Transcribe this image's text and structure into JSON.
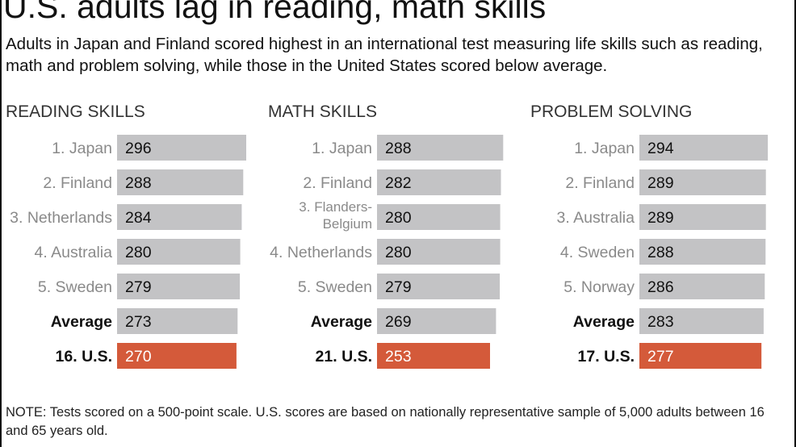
{
  "title": "U.S. adults lag in reading, math skills",
  "subtitle": "Adults in Japan and Finland scored highest in an international test measuring life skills such as reading, math and problem solving, while those in the United States scored below average.",
  "note": "NOTE: Tests scored on a 500-point scale. U.S. scores are based on nationally representative sample of 5,000 adults between 16 and 65 years old.",
  "colors": {
    "bar": "#c3c3c5",
    "highlight": "#d45a3a",
    "label": "#8a8a8a",
    "emphasis": "#111111"
  },
  "chart_data": [
    {
      "type": "bar",
      "title": "READING SKILLS",
      "categories": [
        "1. Japan",
        "2. Finland",
        "3. Netherlands",
        "4. Australia",
        "5. Sweden",
        "Average",
        "16. U.S."
      ],
      "values": [
        296,
        288,
        284,
        280,
        279,
        273,
        270
      ],
      "highlight": "16. U.S."
    },
    {
      "type": "bar",
      "title": "MATH SKILLS",
      "categories": [
        "1. Japan",
        "2. Finland",
        "3. Flanders-Belgium",
        "4. Netherlands",
        "5. Sweden",
        "Average",
        "21. U.S."
      ],
      "values": [
        288,
        282,
        280,
        280,
        279,
        269,
        253
      ],
      "highlight": "21. U.S."
    },
    {
      "type": "bar",
      "title": "PROBLEM SOLVING",
      "categories": [
        "1. Japan",
        "2. Finland",
        "3. Australia",
        "4. Sweden",
        "5. Norway",
        "Average",
        "17. U.S."
      ],
      "values": [
        294,
        289,
        289,
        288,
        286,
        283,
        277
      ],
      "highlight": "17. U.S."
    }
  ]
}
